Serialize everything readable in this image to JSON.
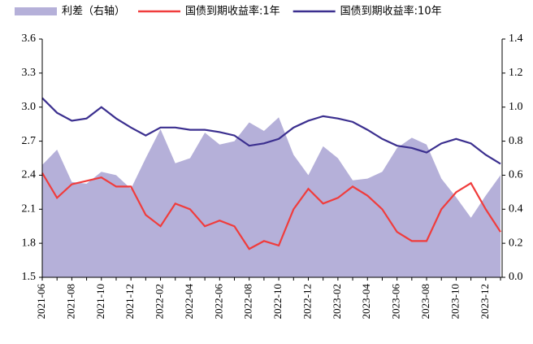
{
  "chart_data": {
    "type": "line",
    "categories": [
      "2021-06",
      null,
      "2021-08",
      null,
      "2021-10",
      null,
      "2021-12",
      null,
      "2022-02",
      null,
      "2022-04",
      null,
      "2022-06",
      null,
      "2022-08",
      null,
      "2022-10",
      null,
      "2022-12",
      null,
      "2023-02",
      null,
      "2023-04",
      null,
      "2023-06",
      null,
      "2023-08",
      null,
      "2023-10",
      null,
      "2023-12",
      null
    ],
    "series": [
      {
        "name": "利差（右轴）",
        "color": "#b5b0d9",
        "kind": "area",
        "axis": "y2",
        "values": [
          0.66,
          0.75,
          0.56,
          0.55,
          0.62,
          0.6,
          0.52,
          0.7,
          0.87,
          0.67,
          0.7,
          0.85,
          0.78,
          0.8,
          0.91,
          0.86,
          0.94,
          0.72,
          0.6,
          0.77,
          0.7,
          0.57,
          0.58,
          0.62,
          0.76,
          0.82,
          0.78,
          0.58,
          0.47,
          0.35,
          0.48,
          0.6
        ]
      },
      {
        "name": "国债到期收益率:1年",
        "color": "#f03c3c",
        "kind": "line",
        "values": [
          2.42,
          2.2,
          2.32,
          2.35,
          2.38,
          2.3,
          2.3,
          2.05,
          1.95,
          2.15,
          2.1,
          1.95,
          2.0,
          1.95,
          1.75,
          1.82,
          1.78,
          2.1,
          2.28,
          2.15,
          2.2,
          2.3,
          2.22,
          2.1,
          1.9,
          1.82,
          1.82,
          2.1,
          2.25,
          2.33,
          2.1,
          1.9
        ]
      },
      {
        "name": "国债到期收益率:10年",
        "color": "#3b2f8f",
        "kind": "line",
        "values": [
          3.08,
          2.95,
          2.88,
          2.9,
          3.0,
          2.9,
          2.82,
          2.75,
          2.82,
          2.82,
          2.8,
          2.8,
          2.78,
          2.75,
          2.66,
          2.68,
          2.72,
          2.82,
          2.88,
          2.92,
          2.9,
          2.87,
          2.8,
          2.72,
          2.66,
          2.64,
          2.6,
          2.68,
          2.72,
          2.68,
          2.58,
          2.5
        ]
      }
    ],
    "ylim": [
      1.5,
      3.6
    ],
    "yticks": [
      1.5,
      1.8,
      2.1,
      2.4,
      2.7,
      {
        "value": 3,
        "label": "3.0"
      },
      3.3,
      3.6
    ],
    "y2lim": [
      0,
      1.4
    ],
    "y2ticks": [
      {
        "value": 0,
        "label": "0.0"
      },
      0.2,
      0.4,
      0.6,
      0.8,
      {
        "value": 1,
        "label": "1.0"
      },
      1.2,
      1.4
    ]
  }
}
